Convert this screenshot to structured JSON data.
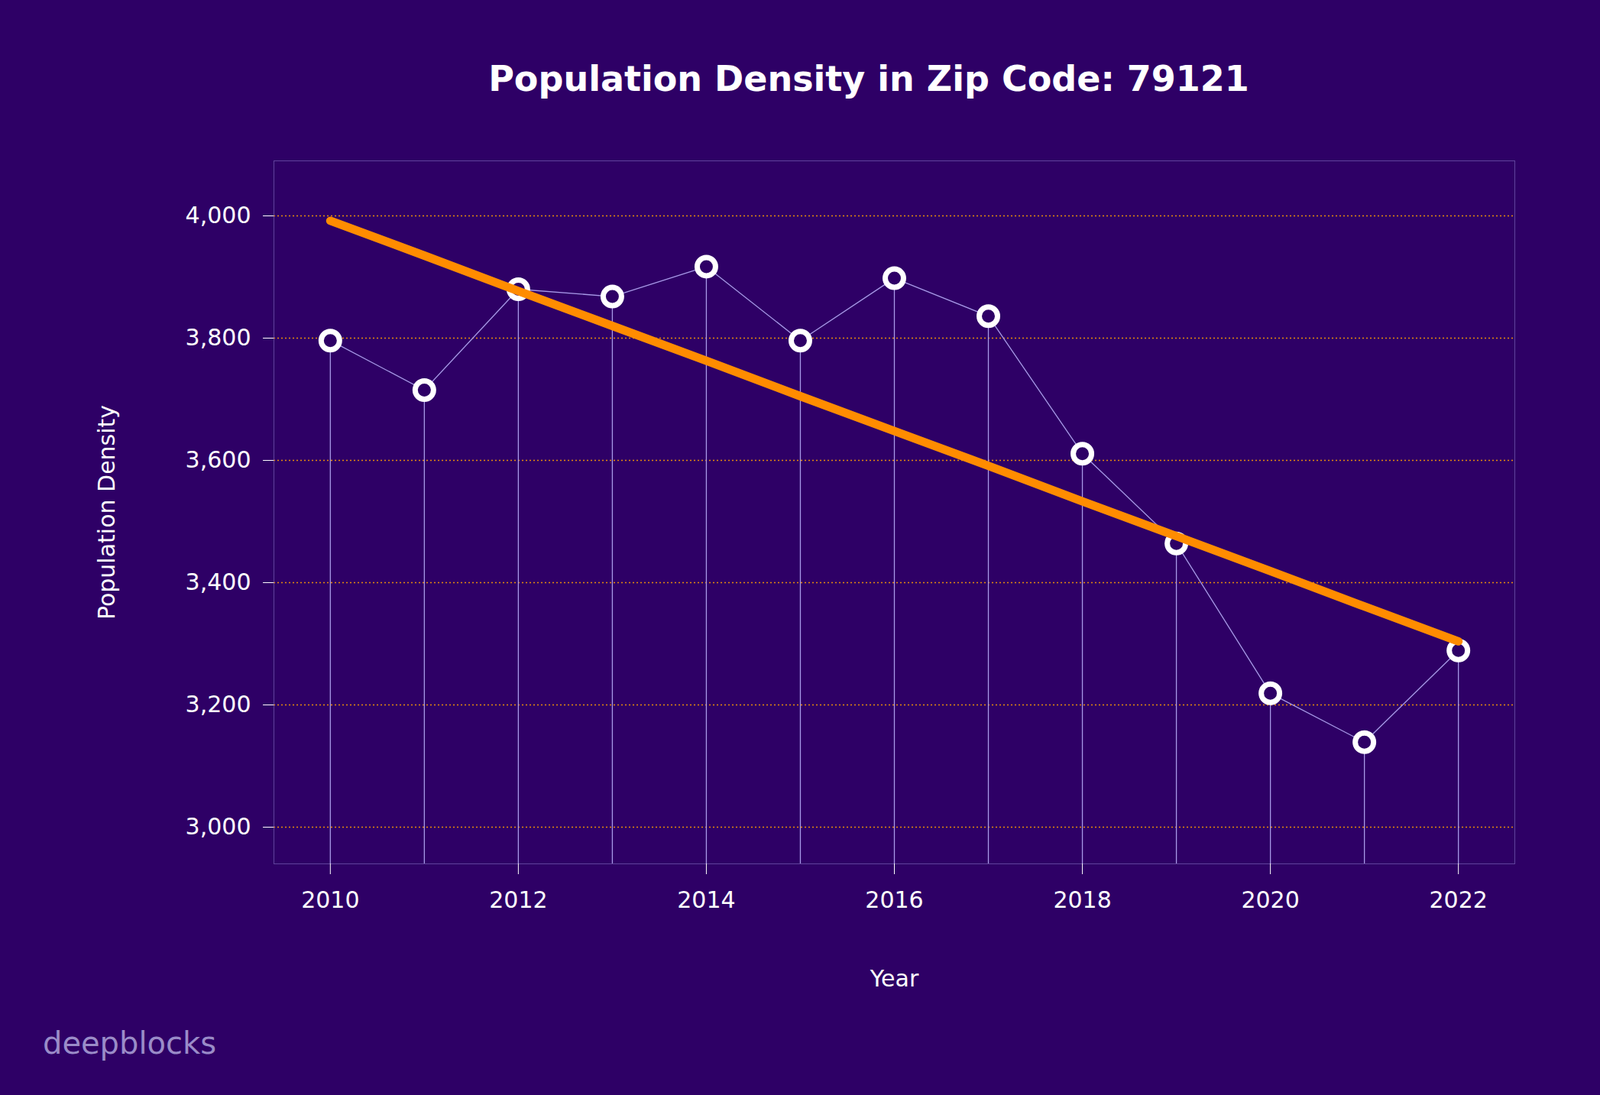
{
  "chart_data": {
    "type": "line",
    "title": "Population Density in Zip Code: 79121",
    "x_label": "Year",
    "y_label": "Population Density",
    "watermark": "deepblocks",
    "x": [
      2010,
      2011,
      2012,
      2013,
      2014,
      2015,
      2016,
      2017,
      2018,
      2019,
      2020,
      2021,
      2022
    ],
    "series": [
      {
        "color": "#ffffff",
        "marker": "circle",
        "line_style": "solid",
        "values": [
          3796,
          3715,
          3880,
          3868,
          3917,
          3796,
          3898,
          3836,
          3611,
          3464,
          3219,
          3139,
          3289
        ]
      },
      {
        "color": "#ff8c00",
        "marker": "none",
        "line_style": "solid",
        "values": [
          3992,
          3935,
          3877,
          3820,
          3763,
          3705,
          3648,
          3591,
          3533,
          3476,
          3419,
          3361,
          3304
        ]
      }
    ],
    "xlim": [
      2009.4,
      2022.6
    ],
    "xticks": [
      2010,
      2012,
      2014,
      2016,
      2018,
      2020,
      2022
    ],
    "ylim": [
      2940,
      4090
    ],
    "yticks": [
      {
        "value": 3000,
        "label": "3,000"
      },
      {
        "value": 3200,
        "label": "3,200"
      },
      {
        "value": 3400,
        "label": "3,400"
      },
      {
        "value": 3600,
        "label": "3,600"
      },
      {
        "value": 3800,
        "label": "3,800"
      },
      {
        "value": 4000,
        "label": "4,000"
      }
    ],
    "grid": true
  }
}
